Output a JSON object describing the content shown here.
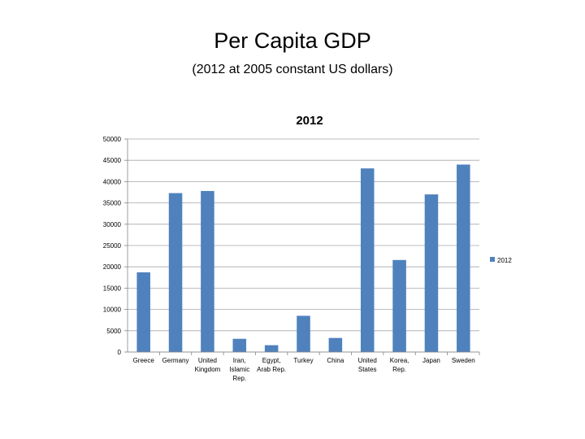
{
  "slide": {
    "title": "Per Capita GDP",
    "subtitle": "(2012 at 2005 constant US dollars)"
  },
  "chart_data": {
    "type": "bar",
    "title": "2012",
    "categories": [
      "Greece",
      "Germany",
      "United Kingdom",
      "Iran, Islamic Rep.",
      "Egypt, Arab Rep.",
      "Turkey",
      "China",
      "United States",
      "Korea, Rep.",
      "Japan",
      "Sweden"
    ],
    "category_lines": [
      [
        "Greece"
      ],
      [
        "Germany"
      ],
      [
        "United",
        "Kingdom"
      ],
      [
        "Iran,",
        "Islamic",
        "Rep."
      ],
      [
        "Egypt,",
        "Arab Rep."
      ],
      [
        "Turkey"
      ],
      [
        "China"
      ],
      [
        "United",
        "States"
      ],
      [
        "Korea,",
        "Rep."
      ],
      [
        "Japan"
      ],
      [
        "Sweden"
      ]
    ],
    "series": [
      {
        "name": "2012",
        "values": [
          18700,
          37300,
          37800,
          3100,
          1600,
          8500,
          3300,
          43100,
          21600,
          37000,
          44000
        ]
      }
    ],
    "ylim": [
      0,
      50000
    ],
    "yticks": [
      0,
      5000,
      10000,
      15000,
      20000,
      25000,
      30000,
      35000,
      40000,
      45000,
      50000
    ],
    "grid": true,
    "legend": "right",
    "bar_color": "#4f81bd"
  }
}
